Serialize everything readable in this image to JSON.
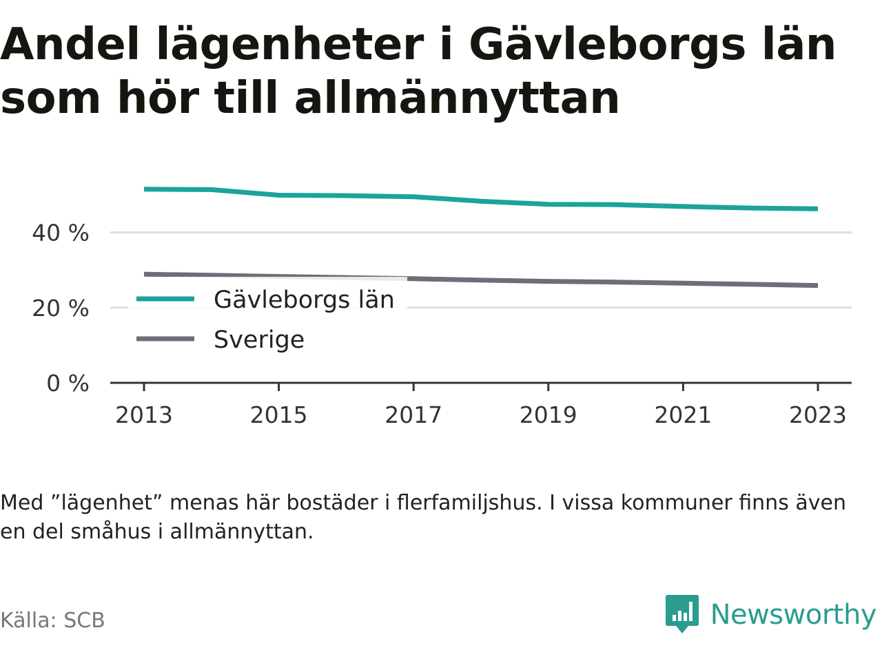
{
  "title": "Andel lägenheter i Gävleborgs län som hör till allmännyttan",
  "note": "Med ”lägenhet” menas här bostäder i flerfamiljshus. I vissa kommuner finns även en del småhus i allmännyttan.",
  "source": "Källa: SCB",
  "brand": {
    "name": "Newsworthy",
    "icon": "newsworthy-logo-icon",
    "color": "#2a9d8f"
  },
  "chart_data": {
    "type": "line",
    "title": "Andel lägenheter i Gävleborgs län som hör till allmännyttan",
    "x": [
      2013,
      2014,
      2015,
      2016,
      2017,
      2018,
      2019,
      2020,
      2021,
      2022,
      2023
    ],
    "x_ticks": [
      "2013",
      "2015",
      "2017",
      "2019",
      "2021",
      "2023"
    ],
    "y_ticks": [
      "0 %",
      "20 %",
      "40 %"
    ],
    "ylim": [
      0,
      50
    ],
    "grid": true,
    "legend": "top-left",
    "series": [
      {
        "name": "Gävleborgs län",
        "color": "#1ba39c",
        "values": [
          51.5,
          51.4,
          49.9,
          49.8,
          49.5,
          48.3,
          47.5,
          47.4,
          46.9,
          46.5,
          46.3
        ]
      },
      {
        "name": "Sverige",
        "color": "#6e6e78",
        "values": [
          28.9,
          28.6,
          28.3,
          28.0,
          27.7,
          27.3,
          27.0,
          26.8,
          26.5,
          26.2,
          25.9
        ]
      }
    ]
  }
}
